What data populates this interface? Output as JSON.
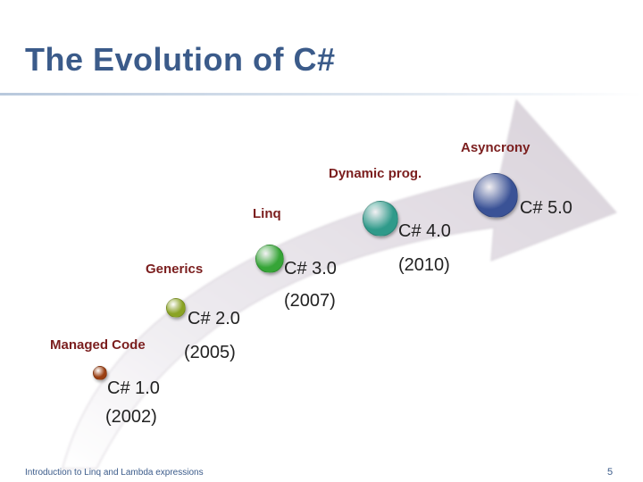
{
  "slide": {
    "title": "The Evolution of C#",
    "footer": "Introduction to Linq and Lambda expressions",
    "page_number": "5"
  },
  "milestones": [
    {
      "feature": "Managed Code",
      "version": "C# 1.0",
      "year": "(2002)",
      "color": "#9a3f12"
    },
    {
      "feature": "Generics",
      "version": "C# 2.0",
      "year": "(2005)",
      "color": "#8aa324"
    },
    {
      "feature": "Linq",
      "version": "C# 3.0",
      "year": "(2007)",
      "color": "#36a537"
    },
    {
      "feature": "Dynamic prog.",
      "version": "C# 4.0",
      "year": "(2010)",
      "color": "#2f9a8a"
    },
    {
      "feature": "Asyncrony",
      "version": "C# 5.0",
      "year": "",
      "color": "#3a5296"
    }
  ]
}
